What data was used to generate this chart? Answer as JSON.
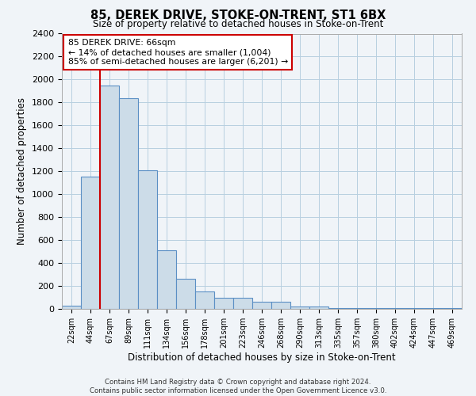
{
  "title": "85, DEREK DRIVE, STOKE-ON-TRENT, ST1 6BX",
  "subtitle": "Size of property relative to detached houses in Stoke-on-Trent",
  "xlabel": "Distribution of detached houses by size in Stoke-on-Trent",
  "ylabel": "Number of detached properties",
  "bar_labels": [
    "22sqm",
    "44sqm",
    "67sqm",
    "89sqm",
    "111sqm",
    "134sqm",
    "156sqm",
    "178sqm",
    "201sqm",
    "223sqm",
    "246sqm",
    "268sqm",
    "290sqm",
    "313sqm",
    "335sqm",
    "357sqm",
    "380sqm",
    "402sqm",
    "424sqm",
    "447sqm",
    "469sqm"
  ],
  "bar_values": [
    30,
    1150,
    1950,
    1840,
    1210,
    510,
    265,
    155,
    100,
    100,
    65,
    60,
    20,
    20,
    5,
    5,
    5,
    5,
    5,
    5,
    5
  ],
  "bar_color": "#ccdce8",
  "bar_edge_color": "#5b8fc4",
  "property_line_x": 1.5,
  "property_line_label": "85 DEREK DRIVE: 66sqm",
  "annotation_line1": "← 14% of detached houses are smaller (1,004)",
  "annotation_line2": "85% of semi-detached houses are larger (6,201) →",
  "ylim": [
    0,
    2400
  ],
  "yticks": [
    0,
    200,
    400,
    600,
    800,
    1000,
    1200,
    1400,
    1600,
    1800,
    2000,
    2200,
    2400
  ],
  "footer_line1": "Contains HM Land Registry data © Crown copyright and database right 2024.",
  "footer_line2": "Contains public sector information licensed under the Open Government Licence v3.0.",
  "bg_color": "#f0f4f8",
  "grid_color": "#b8cfe0",
  "annotation_box_color": "#cc0000"
}
